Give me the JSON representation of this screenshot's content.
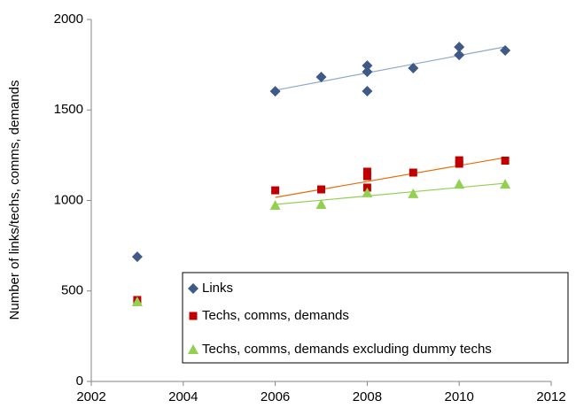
{
  "chart_data": {
    "type": "scatter",
    "y_label": "Number of links/techs, comms, demands",
    "xlim": [
      2002,
      2012
    ],
    "xticks": [
      2002,
      2004,
      2006,
      2008,
      2010,
      2012
    ],
    "ylim": [
      0,
      2000
    ],
    "yticks": [
      0,
      500,
      1000,
      1500,
      2000
    ],
    "legend": "bottom-right",
    "series": [
      {
        "name": "Links",
        "color": "#3f5a86",
        "marker": "diamond",
        "trend_color": "#8ea9c8",
        "x": [
          2003,
          2006,
          2007,
          2008,
          2008,
          2008,
          2009,
          2010,
          2010,
          2011
        ],
        "values": [
          689,
          1603,
          1682,
          1745,
          1711,
          1604,
          1731,
          1848,
          1804,
          1829
        ],
        "trendline": {
          "x": [
            2006,
            2011
          ],
          "values": [
            1609,
            1849
          ]
        }
      },
      {
        "name": "Techs, comms, demands",
        "color": "#c00000",
        "marker": "square",
        "trend_color": "#e46c0a",
        "x": [
          2003,
          2006,
          2007,
          2008,
          2008,
          2008,
          2009,
          2010,
          2010,
          2011
        ],
        "values": [
          450,
          1056,
          1061,
          1159,
          1134,
          1071,
          1154,
          1222,
          1203,
          1220
        ],
        "trendline": {
          "x": [
            2006,
            2011
          ],
          "values": [
            1017,
            1237
          ]
        }
      },
      {
        "name": "Techs, comms, demands excluding dummy techs",
        "color": "#92d050",
        "marker": "triangle",
        "trend_color": "#92d050",
        "x": [
          2003,
          2006,
          2007,
          2008,
          2009,
          2010,
          2011
        ],
        "values": [
          440,
          973,
          978,
          1042,
          1037,
          1090,
          1090
        ],
        "trendline": {
          "x": [
            2006,
            2011
          ],
          "values": [
            978,
            1095
          ]
        }
      }
    ]
  }
}
